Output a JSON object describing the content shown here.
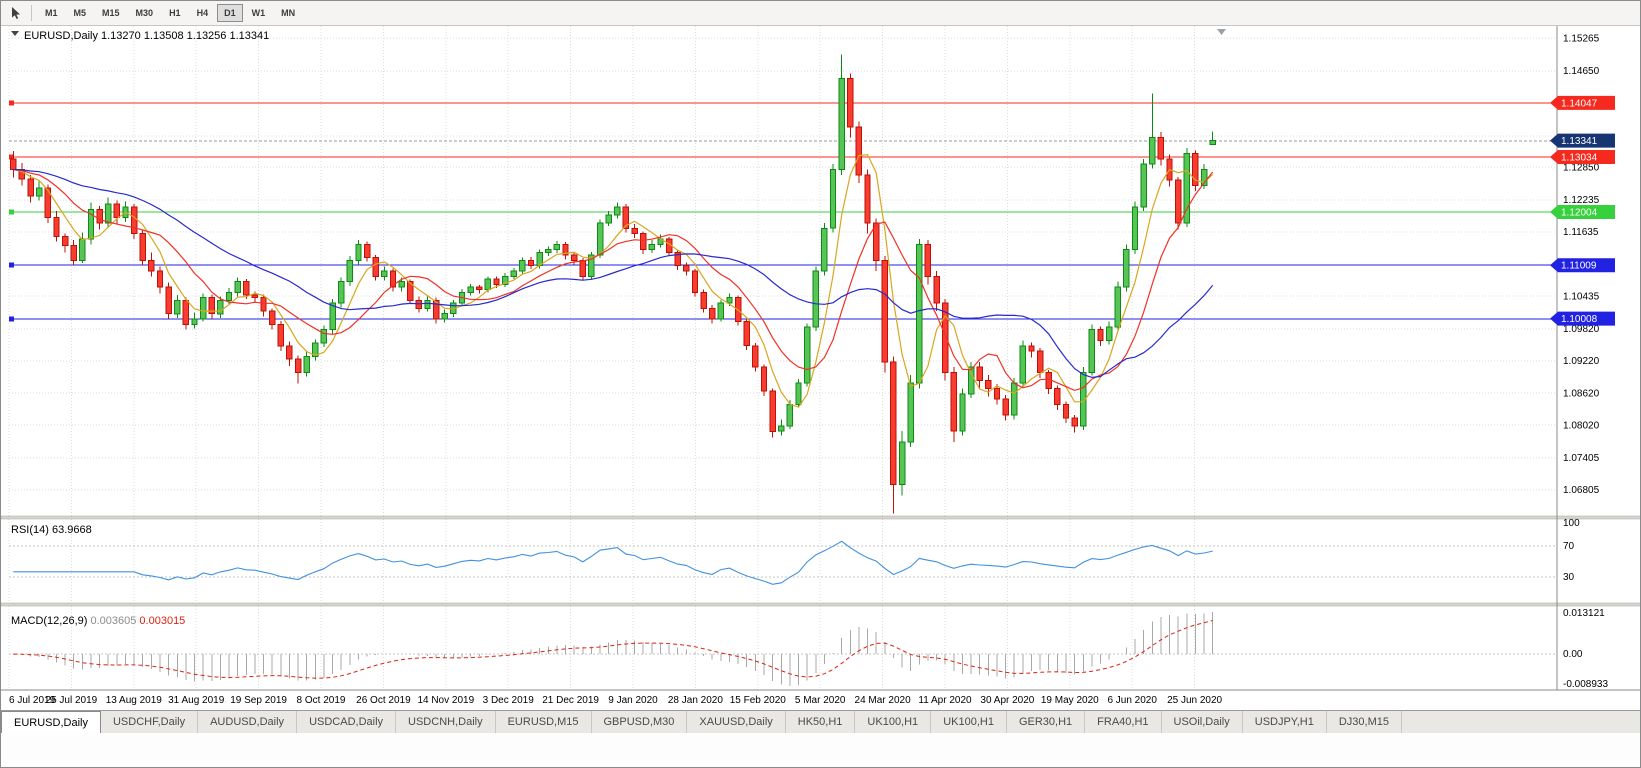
{
  "toolbar": {
    "timeframes": [
      "M1",
      "M5",
      "M15",
      "M30",
      "H1",
      "H4",
      "D1",
      "W1",
      "MN"
    ],
    "selected": "D1",
    "icons": {
      "cursor": "pointer-arrow"
    }
  },
  "window": {
    "title_symbol": "EURUSD,Daily",
    "ohlc": "1.13270 1.13508 1.13256 1.13341"
  },
  "chart_data": {
    "type": "candlestick",
    "symbol": "EURUSD",
    "timeframe": "Daily",
    "open": 1.1327,
    "high": 1.13508,
    "low": 1.13256,
    "close": 1.13341,
    "price_min": 1.0635,
    "price_max": 1.1545,
    "candles": [
      [
        1.13,
        1.1315,
        1.1265,
        1.128
      ],
      [
        1.128,
        1.1292,
        1.125,
        1.1262
      ],
      [
        1.1262,
        1.127,
        1.1218,
        1.123
      ],
      [
        1.123,
        1.1258,
        1.1222,
        1.1245
      ],
      [
        1.1245,
        1.1252,
        1.118,
        1.119
      ],
      [
        1.119,
        1.1202,
        1.1145,
        1.1155
      ],
      [
        1.1155,
        1.116,
        1.1125,
        1.1138
      ],
      [
        1.1138,
        1.1148,
        1.1101,
        1.111
      ],
      [
        1.111,
        1.1162,
        1.1105,
        1.115
      ],
      [
        1.115,
        1.1218,
        1.114,
        1.1205
      ],
      [
        1.1205,
        1.1212,
        1.1168,
        1.118
      ],
      [
        1.118,
        1.1228,
        1.1172,
        1.1215
      ],
      [
        1.1215,
        1.1222,
        1.1178,
        1.119
      ],
      [
        1.119,
        1.122,
        1.1182,
        1.121
      ],
      [
        1.121,
        1.1215,
        1.115,
        1.116
      ],
      [
        1.116,
        1.1168,
        1.11,
        1.111
      ],
      [
        1.111,
        1.1125,
        1.108,
        1.109
      ],
      [
        1.109,
        1.1098,
        1.1048,
        1.106
      ],
      [
        1.106,
        1.1068,
        1.1,
        1.101
      ],
      [
        1.101,
        1.1045,
        1.1002,
        1.1035
      ],
      [
        1.1035,
        1.104,
        1.098,
        1.099
      ],
      [
        1.099,
        1.1012,
        1.0982,
        1.1
      ],
      [
        1.1,
        1.1048,
        1.0995,
        1.104
      ],
      [
        1.104,
        1.1046,
        1.1,
        1.101
      ],
      [
        1.101,
        1.1042,
        1.1002,
        1.1035
      ],
      [
        1.1035,
        1.1058,
        1.1028,
        1.105
      ],
      [
        1.105,
        1.1078,
        1.1042,
        1.107
      ],
      [
        1.107,
        1.1075,
        1.1038,
        1.1045
      ],
      [
        1.1045,
        1.1052,
        1.103,
        1.104
      ],
      [
        1.104,
        1.1046,
        1.1005,
        1.1015
      ],
      [
        1.1015,
        1.102,
        1.098,
        1.099
      ],
      [
        1.099,
        1.0996,
        1.094,
        1.095
      ],
      [
        1.095,
        1.0958,
        1.0912,
        1.0925
      ],
      [
        1.0925,
        1.0932,
        1.0879,
        1.09
      ],
      [
        1.09,
        1.094,
        1.0892,
        1.093
      ],
      [
        1.093,
        1.0962,
        1.0922,
        1.0955
      ],
      [
        1.0955,
        1.0988,
        1.0948,
        1.098
      ],
      [
        1.098,
        1.1038,
        1.0972,
        1.103
      ],
      [
        1.103,
        1.1078,
        1.1022,
        1.107
      ],
      [
        1.107,
        1.1118,
        1.1062,
        1.111
      ],
      [
        1.111,
        1.1148,
        1.1102,
        1.114
      ],
      [
        1.114,
        1.1145,
        1.1108,
        1.1115
      ],
      [
        1.1115,
        1.112,
        1.1072,
        1.108
      ],
      [
        1.108,
        1.1098,
        1.1072,
        1.109
      ],
      [
        1.109,
        1.1095,
        1.1052,
        1.106
      ],
      [
        1.106,
        1.1078,
        1.1052,
        1.107
      ],
      [
        1.107,
        1.1074,
        1.1028,
        1.1035
      ],
      [
        1.1035,
        1.1042,
        1.1012,
        1.102
      ],
      [
        1.102,
        1.1042,
        1.1014,
        1.1035
      ],
      [
        1.1035,
        1.104,
        1.0992,
        1.1
      ],
      [
        1.1,
        1.1018,
        1.0994,
        1.101
      ],
      [
        1.101,
        1.1036,
        1.1004,
        1.103
      ],
      [
        1.103,
        1.1056,
        1.1024,
        1.105
      ],
      [
        1.105,
        1.1066,
        1.1044,
        1.106
      ],
      [
        1.106,
        1.1064,
        1.1048,
        1.1055
      ],
      [
        1.1055,
        1.108,
        1.105,
        1.1075
      ],
      [
        1.1075,
        1.108,
        1.1058,
        1.1065
      ],
      [
        1.1065,
        1.1086,
        1.106,
        1.108
      ],
      [
        1.108,
        1.1096,
        1.1075,
        1.109
      ],
      [
        1.109,
        1.1115,
        1.1085,
        1.111
      ],
      [
        1.111,
        1.1116,
        1.1094,
        1.11
      ],
      [
        1.11,
        1.113,
        1.1095,
        1.1125
      ],
      [
        1.1125,
        1.1136,
        1.1118,
        1.113
      ],
      [
        1.113,
        1.1146,
        1.1124,
        1.114
      ],
      [
        1.114,
        1.1144,
        1.1112,
        1.112
      ],
      [
        1.112,
        1.1126,
        1.1102,
        1.111
      ],
      [
        1.111,
        1.1114,
        1.1072,
        1.108
      ],
      [
        1.108,
        1.1126,
        1.1074,
        1.112
      ],
      [
        1.112,
        1.1186,
        1.1114,
        1.118
      ],
      [
        1.118,
        1.1202,
        1.1174,
        1.1195
      ],
      [
        1.1195,
        1.1218,
        1.1188,
        1.121
      ],
      [
        1.121,
        1.1215,
        1.1162,
        1.117
      ],
      [
        1.117,
        1.1178,
        1.1152,
        1.116
      ],
      [
        1.116,
        1.1164,
        1.1122,
        1.113
      ],
      [
        1.113,
        1.1148,
        1.1124,
        1.114
      ],
      [
        1.114,
        1.1158,
        1.1134,
        1.115
      ],
      [
        1.115,
        1.1154,
        1.1118,
        1.1125
      ],
      [
        1.1125,
        1.113,
        1.1092,
        1.11
      ],
      [
        1.11,
        1.1106,
        1.1082,
        1.109
      ],
      [
        1.109,
        1.1094,
        1.1042,
        1.105
      ],
      [
        1.105,
        1.1055,
        1.1012,
        1.102
      ],
      [
        1.102,
        1.1026,
        1.0992,
        1.1
      ],
      [
        1.1,
        1.1036,
        1.0995,
        1.103
      ],
      [
        1.103,
        1.1048,
        1.1024,
        1.104
      ],
      [
        1.104,
        1.1044,
        1.0988,
        1.0995
      ],
      [
        1.0995,
        1.1,
        1.0942,
        1.095
      ],
      [
        1.095,
        1.0955,
        1.0902,
        1.091
      ],
      [
        1.091,
        1.0915,
        1.0856,
        1.0865
      ],
      [
        1.0865,
        1.087,
        1.0778,
        1.079
      ],
      [
        1.079,
        1.0812,
        1.0782,
        1.08
      ],
      [
        1.08,
        1.0848,
        1.0794,
        1.084
      ],
      [
        1.084,
        1.0888,
        1.0834,
        1.088
      ],
      [
        1.088,
        1.0992,
        1.0874,
        1.0985
      ],
      [
        1.0985,
        1.1098,
        1.0978,
        1.109
      ],
      [
        1.109,
        1.118,
        1.1082,
        1.117
      ],
      [
        1.117,
        1.129,
        1.1162,
        1.128
      ],
      [
        1.128,
        1.1495,
        1.127,
        1.145
      ],
      [
        1.145,
        1.146,
        1.134,
        1.136
      ],
      [
        1.136,
        1.137,
        1.1255,
        1.127
      ],
      [
        1.127,
        1.128,
        1.116,
        1.118
      ],
      [
        1.118,
        1.1188,
        1.109,
        1.111
      ],
      [
        1.111,
        1.1118,
        1.09,
        1.092
      ],
      [
        1.092,
        1.093,
        1.0636,
        1.069
      ],
      [
        1.069,
        1.079,
        1.067,
        1.077
      ],
      [
        1.077,
        1.0895,
        1.076,
        1.088
      ],
      [
        1.088,
        1.115,
        1.087,
        1.114
      ],
      [
        1.114,
        1.1148,
        1.1065,
        1.108
      ],
      [
        1.108,
        1.109,
        1.1015,
        1.103
      ],
      [
        1.103,
        1.1038,
        1.0885,
        1.09
      ],
      [
        1.09,
        1.091,
        1.077,
        1.079
      ],
      [
        1.079,
        1.087,
        1.0782,
        1.086
      ],
      [
        1.086,
        1.092,
        1.0852,
        1.091
      ],
      [
        1.091,
        1.092,
        1.087,
        1.0885
      ],
      [
        1.0885,
        1.0895,
        1.0855,
        1.087
      ],
      [
        1.087,
        1.0878,
        1.084,
        1.085
      ],
      [
        1.085,
        1.0858,
        1.081,
        1.082
      ],
      [
        1.082,
        1.089,
        1.0812,
        1.088
      ],
      [
        1.088,
        1.096,
        1.0872,
        1.095
      ],
      [
        1.095,
        1.0956,
        1.0928,
        1.094
      ],
      [
        1.094,
        1.0946,
        1.089,
        1.09
      ],
      [
        1.09,
        1.0905,
        1.086,
        1.087
      ],
      [
        1.087,
        1.0876,
        1.083,
        1.084
      ],
      [
        1.084,
        1.0846,
        1.0805,
        1.0815
      ],
      [
        1.0815,
        1.082,
        1.0788,
        1.08
      ],
      [
        1.08,
        1.091,
        1.0792,
        1.09
      ],
      [
        1.09,
        1.099,
        1.0894,
        1.098
      ],
      [
        1.098,
        1.0986,
        1.095,
        1.096
      ],
      [
        1.096,
        1.0995,
        1.0952,
        1.0985
      ],
      [
        1.0985,
        1.107,
        1.0978,
        1.106
      ],
      [
        1.106,
        1.114,
        1.1052,
        1.113
      ],
      [
        1.113,
        1.122,
        1.1122,
        1.121
      ],
      [
        1.121,
        1.13,
        1.1202,
        1.129
      ],
      [
        1.129,
        1.1422,
        1.1282,
        1.134
      ],
      [
        1.134,
        1.135,
        1.1288,
        1.13
      ],
      [
        1.13,
        1.1308,
        1.1248,
        1.126
      ],
      [
        1.126,
        1.1266,
        1.1168,
        1.118
      ],
      [
        1.118,
        1.132,
        1.1172,
        1.131
      ],
      [
        1.131,
        1.1316,
        1.124,
        1.125
      ],
      [
        1.125,
        1.129,
        1.1244,
        1.128
      ],
      [
        1.1327,
        1.1351,
        1.1326,
        1.1334
      ]
    ],
    "grid_prices": [
      1.15265,
      1.1465,
      1.1404,
      1.13435,
      1.1285,
      1.12235,
      1.11635,
      1.1102,
      1.10435,
      1.0982,
      1.0922,
      1.0862,
      1.0802,
      1.07405,
      1.06805
    ],
    "price_axis_labels": [
      "1.15265",
      "1.14650",
      "1.12850",
      "1.12235",
      "1.11635",
      "1.10435",
      "1.09820",
      "1.09220",
      "1.08620",
      "1.08020",
      "1.07405",
      "1.06805"
    ],
    "hlines": [
      {
        "price": 1.14047,
        "label": "1.14047",
        "color": "#f5291d"
      },
      {
        "price": 1.13034,
        "label": "1.13034",
        "color": "#f5291d"
      },
      {
        "price": 1.12004,
        "label": "1.12004",
        "color": "#36d13c"
      },
      {
        "price": 1.11009,
        "label": "1.11009",
        "color": "#2222e2"
      },
      {
        "price": 1.10008,
        "label": "1.10008",
        "color": "#2222e2"
      }
    ],
    "bid": {
      "price": 1.13341,
      "label": "1.13341"
    },
    "date_labels": [
      "6 Jul 2019",
      "25 Jul 2019",
      "13 Aug 2019",
      "31 Aug 2019",
      "19 Sep 2019",
      "8 Oct 2019",
      "26 Oct 2019",
      "14 Nov 2019",
      "3 Dec 2019",
      "21 Dec 2019",
      "9 Jan 2020",
      "28 Jan 2020",
      "15 Feb 2020",
      "5 Mar 2020",
      "24 Mar 2020",
      "11 Apr 2020",
      "30 Apr 2020",
      "19 May 2020",
      "6 Jun 2020",
      "25 Jun 2020"
    ],
    "indicators": {
      "ma": [
        {
          "period": 5,
          "color": "#d8a61e"
        },
        {
          "period": 10,
          "color": "#ee3226"
        },
        {
          "period": 25,
          "color": "#2929cf"
        }
      ],
      "rsi": {
        "name": "RSI(14)",
        "value": "63.9668",
        "period": 14,
        "levels": [
          70,
          30
        ],
        "axis_labels": [
          "100",
          "70",
          "30"
        ]
      },
      "macd": {
        "name": "MACD(12,26,9)",
        "main_value": "0.003605",
        "signal_value": "0.003015",
        "fast": 12,
        "slow": 26,
        "signal": 9,
        "axis_labels": {
          "top": "0.013121",
          "zero": "0.00",
          "bottom": "-0.008933"
        }
      }
    }
  },
  "colors": {
    "grid": "#dcdcdc",
    "up_fill": "#56c556",
    "up_stroke": "#0c8a14",
    "down_fill": "#fa3c30",
    "down_stroke": "#bb1207",
    "rsi": "#4191df",
    "macd_hist": "#a8a8a8",
    "macd_signal": "#dd2211",
    "bid_badge": "#173572"
  },
  "tabs": [
    {
      "label": "EURUSD,Daily",
      "active": true
    },
    {
      "label": "USDCHF,Daily",
      "active": false
    },
    {
      "label": "AUDUSD,Daily",
      "active": false
    },
    {
      "label": "USDCAD,Daily",
      "active": false
    },
    {
      "label": "USDCNH,Daily",
      "active": false
    },
    {
      "label": "EURUSD,M15",
      "active": false
    },
    {
      "label": "GBPUSD,M30",
      "active": false
    },
    {
      "label": "XAUUSD,Daily",
      "active": false
    },
    {
      "label": "HK50,H1",
      "active": false
    },
    {
      "label": "UK100,H1",
      "active": false
    },
    {
      "label": "UK100,H1",
      "active": false
    },
    {
      "label": "GER30,H1",
      "active": false
    },
    {
      "label": "FRA40,H1",
      "active": false
    },
    {
      "label": "USOil,Daily",
      "active": false
    },
    {
      "label": "USDJPY,H1",
      "active": false
    },
    {
      "label": "DJ30,M15",
      "active": false
    }
  ]
}
